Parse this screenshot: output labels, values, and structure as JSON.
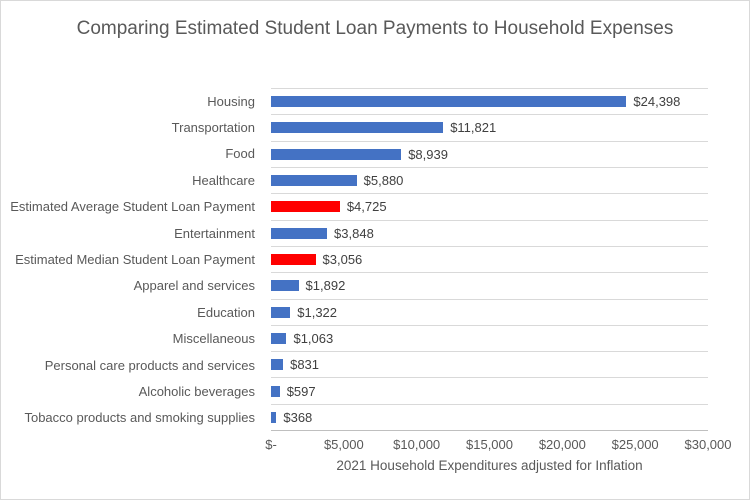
{
  "chart_data": {
    "type": "bar",
    "orientation": "horizontal",
    "title": "Comparing Estimated Student Loan Payments to Household Expenses",
    "xlabel": "2021 Household Expenditures adjusted for Inflation",
    "ylabel": "",
    "xlim": [
      0,
      30000
    ],
    "grid": "category-row-gridlines-on",
    "legend": "none",
    "categories": [
      "Housing",
      "Transportation",
      "Food",
      "Healthcare",
      "Estimated Average Student Loan Payment",
      "Entertainment",
      "Estimated Median Student Loan Payment",
      "Apparel and services",
      "Education",
      "Miscellaneous",
      "Personal care products and services",
      "Alcoholic beverages",
      "Tobacco products and smoking supplies"
    ],
    "values": [
      24398,
      11821,
      8939,
      5880,
      4725,
      3848,
      3056,
      1892,
      1322,
      1063,
      831,
      597,
      368
    ],
    "value_labels": [
      "$24,398",
      "$11,821",
      "$8,939",
      "$5,880",
      "$4,725",
      "$3,848",
      "$3,056",
      "$1,892",
      "$1,322",
      "$1,063",
      "$831",
      "$597",
      "$368"
    ],
    "bar_colors": [
      "#4472C4",
      "#4472C4",
      "#4472C4",
      "#4472C4",
      "#FF0000",
      "#4472C4",
      "#FF0000",
      "#4472C4",
      "#4472C4",
      "#4472C4",
      "#4472C4",
      "#4472C4",
      "#4472C4"
    ],
    "x_ticks": [
      {
        "value": 0,
        "label": "$-"
      },
      {
        "value": 5000,
        "label": "$5,000"
      },
      {
        "value": 10000,
        "label": "$10,000"
      },
      {
        "value": 15000,
        "label": "$15,000"
      },
      {
        "value": 20000,
        "label": "$20,000"
      },
      {
        "value": 25000,
        "label": "$25,000"
      },
      {
        "value": 30000,
        "label": "$30,000"
      }
    ],
    "colors": {
      "default_bar": "#4472C4",
      "highlight_bar": "#FF0000",
      "gridline": "#D9D9D9",
      "axis_line": "#BFBFBF",
      "title_text": "#595959",
      "value_label_text": "#404040",
      "chart_border": "#D9D9D9"
    }
  }
}
